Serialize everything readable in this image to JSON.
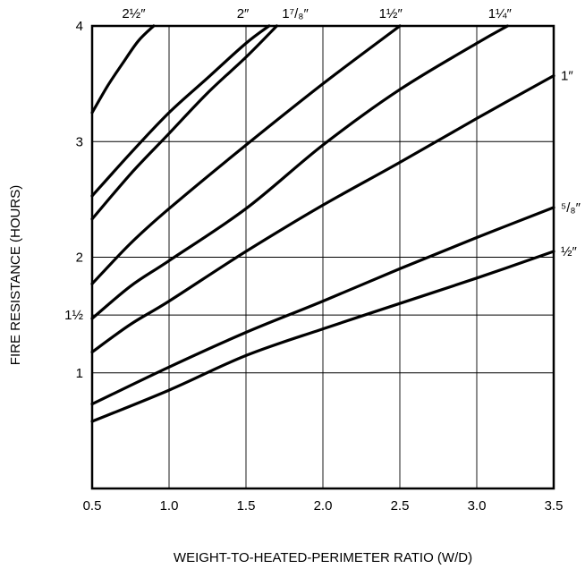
{
  "chart_data": {
    "type": "line",
    "xlabel": "WEIGHT-TO-HEATED-PERIMETER RATIO (W/D)",
    "ylabel": "FIRE RESISTANCE (HOURS)",
    "xlim": [
      0.5,
      3.5
    ],
    "ylim": [
      0,
      4
    ],
    "x_ticks": [
      0.5,
      1.0,
      1.5,
      2.0,
      2.5,
      3.0,
      3.5
    ],
    "x_tick_labels": [
      "0.5",
      "1.0",
      "1.5",
      "2.0",
      "2.5",
      "3.0",
      "3.5"
    ],
    "y_ticks": [
      1,
      1.5,
      2,
      3,
      4
    ],
    "y_tick_labels": [
      "1",
      "1½",
      "2",
      "3",
      "4"
    ],
    "grid": true,
    "series": [
      {
        "name": "2½″",
        "x": [
          0.5,
          0.6,
          0.7,
          0.8,
          0.9
        ],
        "y": [
          3.25,
          3.48,
          3.68,
          3.87,
          4.0
        ]
      },
      {
        "name": "2″",
        "x": [
          0.5,
          0.75,
          1.0,
          1.25,
          1.5,
          1.65
        ],
        "y": [
          2.53,
          2.9,
          3.25,
          3.55,
          3.85,
          4.0
        ]
      },
      {
        "name": "1⁷/₈″",
        "x": [
          0.5,
          0.75,
          1.0,
          1.25,
          1.5,
          1.7
        ],
        "y": [
          2.33,
          2.72,
          3.07,
          3.42,
          3.73,
          4.0
        ]
      },
      {
        "name": "1½″",
        "x": [
          0.5,
          0.75,
          1.0,
          1.5,
          2.0,
          2.5
        ],
        "y": [
          1.77,
          2.12,
          2.42,
          2.97,
          3.5,
          4.0
        ]
      },
      {
        "name": "1¼″",
        "x": [
          0.5,
          0.75,
          1.0,
          1.5,
          2.0,
          2.5,
          3.0,
          3.2
        ],
        "y": [
          1.47,
          1.75,
          1.97,
          2.42,
          2.97,
          3.45,
          3.85,
          4.0
        ]
      },
      {
        "name": "1″",
        "x": [
          0.5,
          0.75,
          1.0,
          1.5,
          2.0,
          2.5,
          3.0,
          3.5
        ],
        "y": [
          1.18,
          1.42,
          1.62,
          2.05,
          2.45,
          2.82,
          3.2,
          3.57
        ]
      },
      {
        "name": "⁵/₈″",
        "x": [
          0.5,
          1.0,
          1.5,
          2.0,
          2.5,
          3.0,
          3.5
        ],
        "y": [
          0.73,
          1.05,
          1.35,
          1.62,
          1.9,
          2.17,
          2.43
        ]
      },
      {
        "name": "½″",
        "x": [
          0.5,
          1.0,
          1.5,
          2.0,
          2.5,
          3.0,
          3.5
        ],
        "y": [
          0.58,
          0.85,
          1.15,
          1.38,
          1.6,
          1.82,
          2.05
        ]
      }
    ],
    "label_placement": [
      {
        "side": "top",
        "x": 0.77
      },
      {
        "side": "top",
        "x": 1.48
      },
      {
        "side": "top",
        "x": 1.82
      },
      {
        "side": "top",
        "x": 2.44
      },
      {
        "side": "top",
        "x": 3.15
      },
      {
        "side": "right",
        "y": 3.57
      },
      {
        "side": "right",
        "y": 2.43
      },
      {
        "side": "right",
        "y": 2.05
      }
    ]
  }
}
